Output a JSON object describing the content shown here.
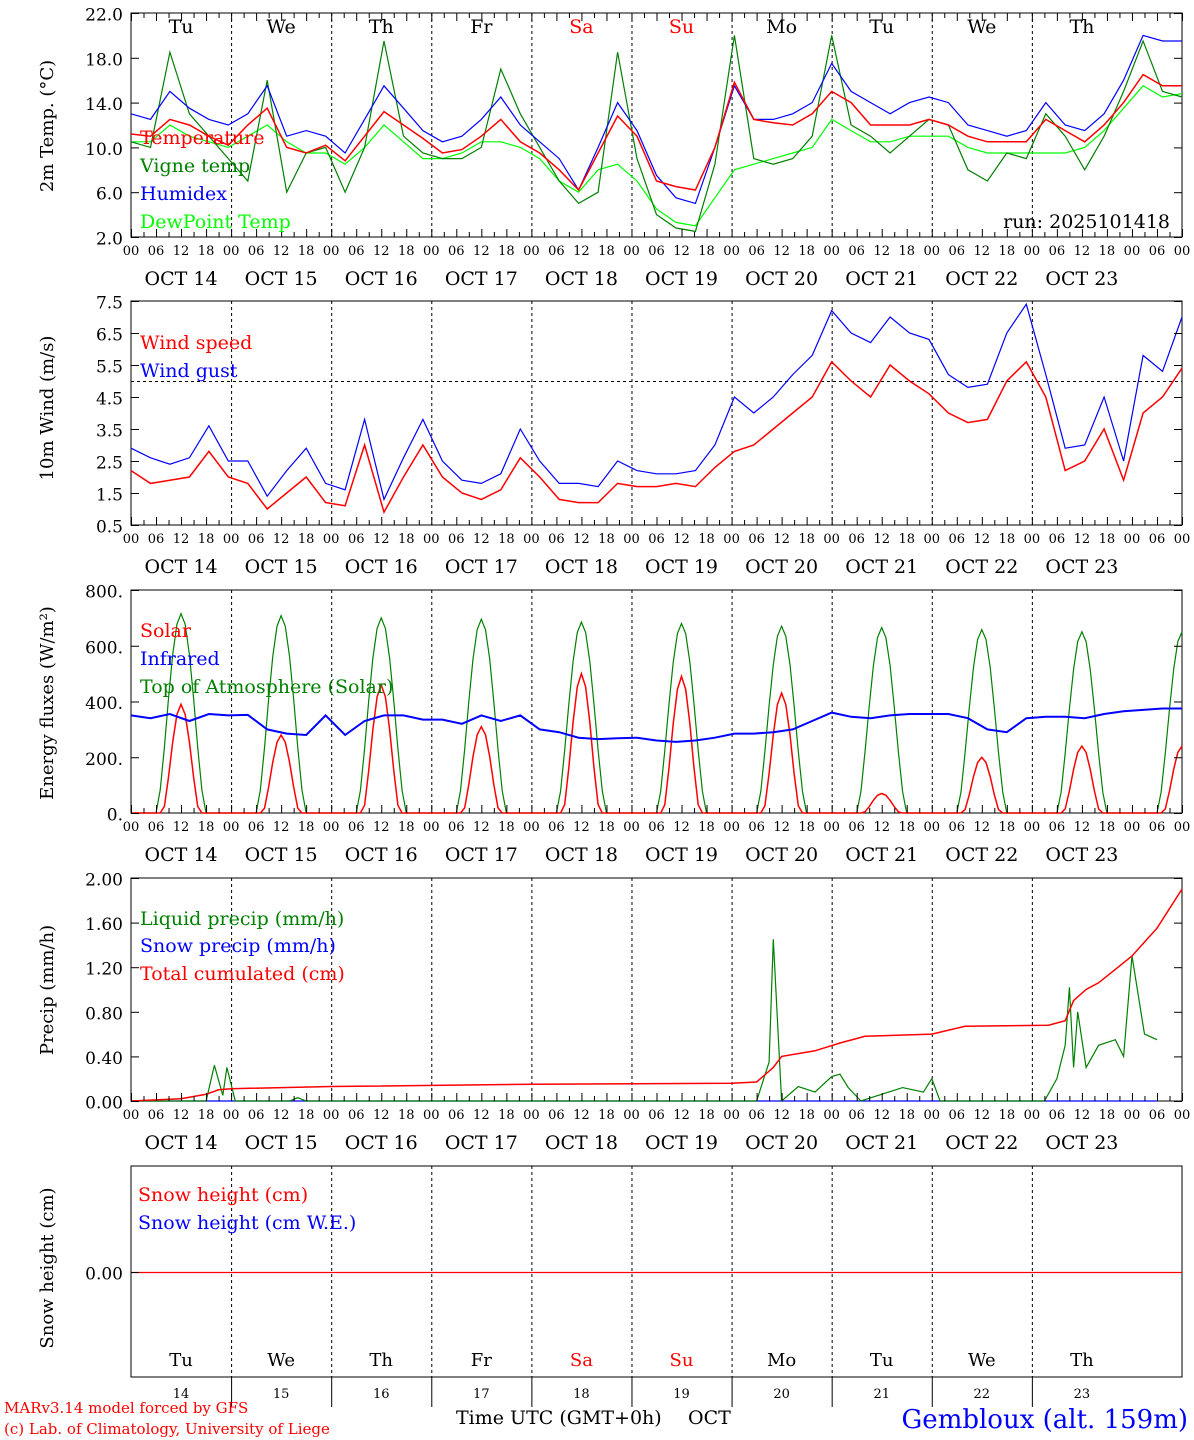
{
  "days": [
    "Tu",
    "We",
    "Th",
    "Fr",
    "Sa",
    "Su",
    "Mo",
    "Tu",
    "We",
    "Th"
  ],
  "weekend_flags": [
    false,
    false,
    false,
    false,
    true,
    true,
    false,
    false,
    false,
    false
  ],
  "date_labels": [
    "OCT 14",
    "OCT 15",
    "OCT 16",
    "OCT 17",
    "OCT 18",
    "OCT 19",
    "OCT 20",
    "OCT 21",
    "OCT 22",
    "OCT 23"
  ],
  "hour_ticks": [
    "00",
    "06",
    "12",
    "18"
  ],
  "hour_end_label": "00",
  "colors": {
    "red": "#ff0000",
    "green": "#008000",
    "blue": "#0000ff",
    "lightgreen": "#00ff00",
    "black": "#000000"
  },
  "run_label": "run: 2025101418",
  "footer": {
    "left_line1": "MARv3.14 model forced by GFS",
    "left_line2": "(c) Lab. of Climatology, University of Liege",
    "xlabel": "Time UTC (GMT+0h)",
    "month": "OCT",
    "station": "Gembloux (alt. 159m)",
    "bottom_day_numbers": [
      "14",
      "15",
      "16",
      "17",
      "18",
      "19",
      "20",
      "21",
      "22",
      "23"
    ]
  },
  "chart_data": [
    {
      "type": "line",
      "id": "temp",
      "ylabel": "2m Temp. (°C)",
      "ylim": [
        2.0,
        22.0
      ],
      "yticks": [
        "2.0",
        "6.0",
        "10.0",
        "14.0",
        "18.0",
        "22.0"
      ],
      "x": "hours since 2025-10-14 00 UTC, every 6h, 0..240",
      "series": [
        {
          "name": "Temperature",
          "color": "red",
          "values": [
            11.2,
            11.0,
            12.5,
            12.0,
            11.0,
            10.2,
            12.0,
            13.5,
            10.0,
            9.5,
            10.2,
            8.8,
            11.0,
            13.2,
            12.0,
            10.8,
            9.5,
            9.8,
            11.0,
            12.5,
            10.5,
            9.5,
            8.0,
            6.2,
            9.5,
            12.8,
            11.0,
            7.0,
            6.5,
            6.2,
            10.0,
            15.8,
            12.5,
            12.2,
            12.0,
            13.0,
            15.0,
            14.0,
            12.0,
            12.0,
            12.0,
            12.5,
            12.0,
            11.0,
            10.5,
            10.5,
            10.5,
            12.5,
            11.5,
            10.5,
            12.0,
            14.0,
            16.5,
            15.5,
            15.5
          ]
        },
        {
          "name": "Vigne temp",
          "color": "green",
          "values": [
            10.5,
            10.0,
            18.5,
            13.0,
            11.0,
            9.0,
            7.0,
            16.0,
            6.0,
            9.5,
            10.0,
            6.0,
            10.0,
            19.5,
            11.0,
            9.5,
            9.0,
            9.0,
            10.0,
            17.0,
            13.0,
            10.0,
            7.0,
            5.0,
            6.0,
            18.5,
            9.0,
            4.0,
            2.8,
            2.5,
            8.5,
            20.0,
            9.0,
            8.5,
            9.0,
            11.0,
            20.0,
            12.0,
            11.0,
            9.5,
            11.0,
            12.5,
            12.0,
            8.0,
            7.0,
            9.5,
            9.0,
            13.0,
            11.0,
            8.0,
            11.0,
            15.0,
            19.5,
            15.0,
            14.5
          ]
        },
        {
          "name": "Humidex",
          "color": "blue",
          "values": [
            13.0,
            12.5,
            15.0,
            13.5,
            12.5,
            12.0,
            13.0,
            15.5,
            11.0,
            11.5,
            11.0,
            9.5,
            12.5,
            15.5,
            13.5,
            11.5,
            10.5,
            11.0,
            12.5,
            14.5,
            12.0,
            10.5,
            9.0,
            6.2,
            10.0,
            14.0,
            11.5,
            7.5,
            5.5,
            5.0,
            10.0,
            15.5,
            12.5,
            12.5,
            13.0,
            14.0,
            17.5,
            15.0,
            14.0,
            13.0,
            14.0,
            14.5,
            14.0,
            12.0,
            11.5,
            11.0,
            11.5,
            14.0,
            12.0,
            11.5,
            13.0,
            16.0,
            20.0,
            19.5,
            19.5
          ]
        },
        {
          "name": "DewPoint Temp",
          "color": "lightgreen",
          "values": [
            10.5,
            10.5,
            12.0,
            11.0,
            10.5,
            10.0,
            11.0,
            12.0,
            10.5,
            9.5,
            9.5,
            8.5,
            10.0,
            12.0,
            10.5,
            9.0,
            9.0,
            9.5,
            10.5,
            10.5,
            10.0,
            9.0,
            7.0,
            6.0,
            8.0,
            8.5,
            7.0,
            4.5,
            3.3,
            3.0,
            5.5,
            8.0,
            8.5,
            9.0,
            9.5,
            10.0,
            12.5,
            11.5,
            10.5,
            10.5,
            11.0,
            11.0,
            11.0,
            10.0,
            9.5,
            9.5,
            9.5,
            9.5,
            9.5,
            10.0,
            11.5,
            13.5,
            15.5,
            14.5,
            14.8
          ]
        }
      ]
    },
    {
      "type": "line",
      "id": "wind",
      "ylabel": "10m Wind (m/s)",
      "ylim": [
        0.5,
        7.5
      ],
      "yticks": [
        "0.5",
        "1.5",
        "2.5",
        "3.5",
        "4.5",
        "5.5",
        "6.5",
        "7.5"
      ],
      "reference_line": 5.0,
      "series": [
        {
          "name": "Wind speed",
          "color": "red",
          "values": [
            2.2,
            1.8,
            1.9,
            2.0,
            2.8,
            2.0,
            1.8,
            1.0,
            1.5,
            2.0,
            1.2,
            1.1,
            3.0,
            0.9,
            2.0,
            3.0,
            2.0,
            1.5,
            1.3,
            1.6,
            2.6,
            2.0,
            1.3,
            1.2,
            1.2,
            1.8,
            1.7,
            1.7,
            1.8,
            1.7,
            2.3,
            2.8,
            3.0,
            3.5,
            4.0,
            4.5,
            5.6,
            5.0,
            4.5,
            5.5,
            5.0,
            4.6,
            4.0,
            3.7,
            3.8,
            5.0,
            5.6,
            4.5,
            2.2,
            2.5,
            3.5,
            1.9,
            4.0,
            4.5,
            5.4
          ]
        },
        {
          "name": "Wind gust",
          "color": "blue",
          "values": [
            2.9,
            2.6,
            2.4,
            2.6,
            3.6,
            2.5,
            2.5,
            1.4,
            2.2,
            2.9,
            1.8,
            1.6,
            3.8,
            1.3,
            2.6,
            3.8,
            2.5,
            1.9,
            1.8,
            2.1,
            3.5,
            2.5,
            1.8,
            1.8,
            1.7,
            2.5,
            2.2,
            2.1,
            2.1,
            2.2,
            3.0,
            4.5,
            4.0,
            4.5,
            5.2,
            5.8,
            7.2,
            6.5,
            6.2,
            7.0,
            6.5,
            6.3,
            5.2,
            4.8,
            4.9,
            6.5,
            7.4,
            5.2,
            2.9,
            3.0,
            4.5,
            2.5,
            5.8,
            5.3,
            7.0
          ]
        }
      ]
    },
    {
      "type": "line",
      "id": "flux",
      "ylabel": "Energy fluxes (W/m²)",
      "ylim": [
        0,
        800
      ],
      "yticks": [
        "0.",
        "200.",
        "400.",
        "600.",
        "800."
      ],
      "series": [
        {
          "name": "Solar",
          "color": "red",
          "peak_by_day": [
            390,
            280,
            460,
            310,
            500,
            490,
            430,
            70,
            200,
            240
          ]
        },
        {
          "name": "Infrared",
          "color": "blue",
          "values": [
            350,
            340,
            355,
            330,
            355,
            350,
            352,
            300,
            285,
            280,
            350,
            280,
            330,
            350,
            350,
            335,
            335,
            320,
            350,
            330,
            350,
            300,
            290,
            270,
            265,
            268,
            270,
            260,
            255,
            260,
            270,
            285,
            285,
            290,
            300,
            330,
            360,
            345,
            340,
            350,
            355,
            355,
            355,
            340,
            300,
            290,
            340,
            345,
            345,
            340,
            355,
            365,
            370,
            375,
            375
          ]
        },
        {
          "name": "Top of Atmosphere (Solar)",
          "color": "green",
          "peak_by_day": [
            715,
            708,
            700,
            695,
            685,
            680,
            670,
            665,
            658,
            650
          ]
        }
      ]
    },
    {
      "type": "line",
      "id": "precip",
      "ylabel": "Precip (mm/h)",
      "ylim": [
        0.0,
        2.0
      ],
      "yticks": [
        "0.00",
        "0.40",
        "0.80",
        "1.20",
        "1.60",
        "2.00"
      ],
      "series": [
        {
          "name": "Liquid precip (mm/h)",
          "color": "green",
          "points": [
            [
              0,
              0
            ],
            [
              18,
              0
            ],
            [
              20,
              0.32
            ],
            [
              22,
              0.05
            ],
            [
              23,
              0.3
            ],
            [
              25,
              0
            ],
            [
              38,
              0
            ],
            [
              40,
              0.03
            ],
            [
              42,
              0
            ],
            [
              150,
              0
            ],
            [
              153,
              0.35
            ],
            [
              154,
              1.45
            ],
            [
              156,
              0
            ],
            [
              160,
              0.13
            ],
            [
              164,
              0.08
            ],
            [
              168,
              0.22
            ],
            [
              170,
              0.24
            ],
            [
              172,
              0.12
            ],
            [
              175,
              0
            ],
            [
              185,
              0.12
            ],
            [
              190,
              0.08
            ],
            [
              192,
              0.2
            ],
            [
              194,
              0
            ],
            [
              219,
              0
            ],
            [
              222,
              0.2
            ],
            [
              224,
              0.5
            ],
            [
              225,
              1.02
            ],
            [
              226,
              0.3
            ],
            [
              227,
              0.8
            ],
            [
              229,
              0.3
            ],
            [
              232,
              0.5
            ],
            [
              236,
              0.55
            ],
            [
              238,
              0.4
            ],
            [
              240,
              1.3
            ],
            [
              243,
              0.6
            ],
            [
              246,
              0.55
            ]
          ]
        },
        {
          "name": "Snow precip (mm/h)",
          "color": "blue",
          "points": [
            [
              0,
              0
            ],
            [
              246,
              0
            ]
          ]
        },
        {
          "name": "Total cumulated (cm)",
          "color": "red",
          "points": [
            [
              0,
              0
            ],
            [
              12,
              0.02
            ],
            [
              18,
              0.06
            ],
            [
              21,
              0.1
            ],
            [
              24,
              0.11
            ],
            [
              48,
              0.13
            ],
            [
              96,
              0.15
            ],
            [
              144,
              0.16
            ],
            [
              150,
              0.17
            ],
            [
              154,
              0.3
            ],
            [
              156,
              0.4
            ],
            [
              164,
              0.45
            ],
            [
              170,
              0.52
            ],
            [
              176,
              0.58
            ],
            [
              192,
              0.6
            ],
            [
              200,
              0.67
            ],
            [
              220,
              0.68
            ],
            [
              224,
              0.72
            ],
            [
              226,
              0.9
            ],
            [
              229,
              1.0
            ],
            [
              232,
              1.06
            ],
            [
              236,
              1.18
            ],
            [
              240,
              1.3
            ],
            [
              246,
              1.55
            ],
            [
              252,
              1.9
            ]
          ]
        }
      ]
    },
    {
      "type": "line",
      "id": "snow",
      "ylabel": "Snow height (cm)",
      "yticks": [
        "0.00"
      ],
      "series": [
        {
          "name": "Snow height (cm)",
          "color": "red",
          "values": [
            0,
            0
          ]
        },
        {
          "name": "Snow height (cm W.E.)",
          "color": "blue",
          "values": [
            0,
            0
          ]
        }
      ]
    }
  ]
}
